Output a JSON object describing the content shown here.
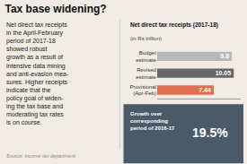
{
  "chart_data": {
    "type": "bar",
    "orientation": "horizontal",
    "title": "Tax base widening?",
    "subtitle": "Net direct tax receipts (2017-18)\n(in Rs trillion)",
    "annotations": [
      "Net direct tax receipts\nin the April-February\nperiod of 2017-18\nshowed robust\ngrowth as a result of\nintensive data mining\nand anti-evasion mea-\nsures. Higher receipts\nindicate that the\npolicy goal of widen-\ning the tax base and\nmoderating tax rates\nis on course.",
      "Source: Income tax department",
      "Growth over\ncorresponding\nperiod of 2016-17",
      "19.5%"
    ],
    "categories": [
      "Budget\nestimate",
      "Revised\nestimate",
      "Provisional\n(Apr-Feb)"
    ],
    "values": [
      9.8,
      10.05,
      7.44
    ],
    "colors": [
      "#b8b8b8",
      "#666666",
      "#e07050"
    ],
    "data_labels": true,
    "xlim": [
      0,
      11
    ],
    "grid": false,
    "tick_labels": "y"
  }
}
